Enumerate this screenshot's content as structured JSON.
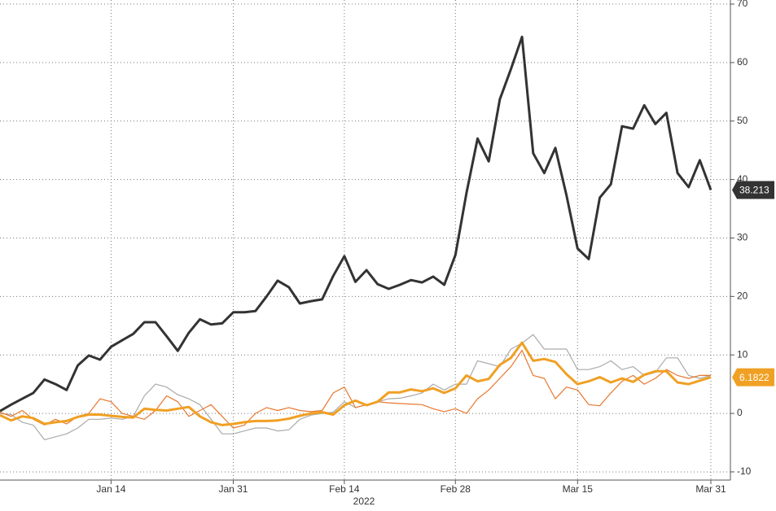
{
  "chart_data": {
    "type": "line",
    "x_label": "2022",
    "categories": [
      null,
      null,
      null,
      null,
      null,
      null,
      null,
      null,
      null,
      null,
      "Jan 14",
      null,
      null,
      null,
      null,
      null,
      null,
      null,
      null,
      null,
      null,
      "Jan 31",
      null,
      null,
      null,
      null,
      null,
      null,
      null,
      null,
      null,
      "Feb 14",
      null,
      null,
      null,
      null,
      null,
      null,
      null,
      null,
      null,
      "Feb 28",
      null,
      null,
      null,
      null,
      null,
      null,
      null,
      null,
      null,
      null,
      "Mar 15",
      null,
      null,
      null,
      null,
      null,
      null,
      null,
      null,
      null,
      null,
      null,
      "Mar 31"
    ],
    "series": [
      {
        "color": "#aaaaaa",
        "width": 1.2,
        "values": [
          0.0,
          -0.2,
          -1.5,
          -2.0,
          -4.5,
          -4.0,
          -3.5,
          -2.5,
          -1.0,
          -1.0,
          -0.8,
          -1.0,
          -0.5,
          3.0,
          5.0,
          4.5,
          3.2,
          2.5,
          1.5,
          -1.0,
          -3.5,
          -3.5,
          -3.0,
          -2.5,
          -2.5,
          -3.0,
          -2.8,
          -1.0,
          -0.3,
          0.0,
          0.2,
          2.0,
          1.0,
          1.5,
          2.0,
          2.5,
          2.6,
          3.0,
          3.5,
          5.0,
          4.0,
          5.0,
          5.0,
          9.0,
          8.5,
          8.0,
          11.0,
          12.0,
          13.5,
          11.0,
          11.0,
          11.0,
          7.5,
          7.5,
          8.0,
          9.0,
          7.5,
          8.0,
          6.5,
          7.0,
          9.5,
          9.5,
          6.5,
          6.0,
          6.5
        ]
      },
      {
        "color": "#e8772e",
        "width": 1.2,
        "values": [
          0.2,
          -0.5,
          0.5,
          -1.0,
          -2.0,
          -1.0,
          -1.8,
          -0.5,
          0.0,
          2.5,
          2.0,
          0.0,
          -0.5,
          -1.0,
          0.5,
          3.0,
          2.0,
          -0.5,
          0.5,
          1.5,
          -0.5,
          -2.5,
          -2.0,
          0.0,
          1.0,
          0.5,
          1.0,
          0.5,
          0.3,
          0.5,
          3.5,
          4.5,
          1.0,
          1.5,
          2.0,
          1.8,
          1.7,
          1.6,
          1.5,
          0.8,
          0.3,
          0.8,
          0.0,
          2.5,
          4.0,
          6.0,
          8.0,
          10.8,
          6.5,
          6.0,
          2.5,
          4.5,
          4.0,
          1.5,
          1.3,
          3.5,
          5.5,
          6.5,
          5.0,
          6.0,
          7.5,
          6.5,
          6.0,
          6.5,
          6.5
        ]
      },
      {
        "color": "#333333",
        "width": 3,
        "last_label": true,
        "values": [
          0.4,
          1.5,
          2.5,
          3.5,
          5.8,
          5.0,
          4.0,
          8.2,
          9.9,
          9.2,
          11.4,
          12.5,
          13.6,
          15.6,
          15.6,
          13.2,
          10.7,
          13.8,
          16.1,
          15.2,
          15.4,
          17.3,
          17.3,
          17.5,
          20.0,
          22.7,
          21.6,
          18.8,
          19.2,
          19.5,
          23.5,
          26.9,
          22.5,
          24.5,
          22.1,
          21.3,
          22.0,
          22.8,
          22.4,
          23.4,
          22.0,
          27.1,
          37.7,
          47.0,
          43.1,
          53.7,
          58.9,
          64.4,
          44.5,
          41.1,
          45.4,
          37.3,
          28.2,
          26.4,
          36.9,
          39.2,
          49.1,
          48.7,
          52.7,
          49.5,
          51.4,
          41.1,
          38.7,
          43.3,
          38.213
        ]
      },
      {
        "color": "#f0a024",
        "width": 3,
        "last_label": true,
        "values": [
          -0.3,
          -1.2,
          -0.5,
          -0.8,
          -1.8,
          -1.5,
          -1.3,
          -0.6,
          -0.2,
          -0.2,
          -0.4,
          -0.6,
          -0.7,
          0.8,
          0.6,
          0.5,
          0.8,
          1.1,
          -0.5,
          -1.5,
          -2.0,
          -1.8,
          -1.5,
          -1.3,
          -1.3,
          -1.2,
          -0.9,
          -0.4,
          0.0,
          0.2,
          -0.2,
          1.4,
          2.2,
          1.4,
          2.0,
          3.6,
          3.6,
          4.1,
          3.8,
          4.3,
          3.5,
          4.3,
          6.5,
          5.5,
          5.9,
          8.3,
          9.5,
          12.1,
          9.0,
          9.3,
          8.8,
          6.7,
          5.0,
          5.5,
          6.2,
          5.3,
          6.0,
          5.4,
          6.6,
          7.2,
          7.2,
          5.3,
          5.0,
          5.6,
          6.1822
        ]
      }
    ],
    "ylim": [
      -11.4,
      70.7
    ],
    "yticks": [
      -10,
      0,
      10,
      20,
      30,
      40,
      50,
      60,
      70
    ],
    "grid": true,
    "axis_side": "right"
  }
}
